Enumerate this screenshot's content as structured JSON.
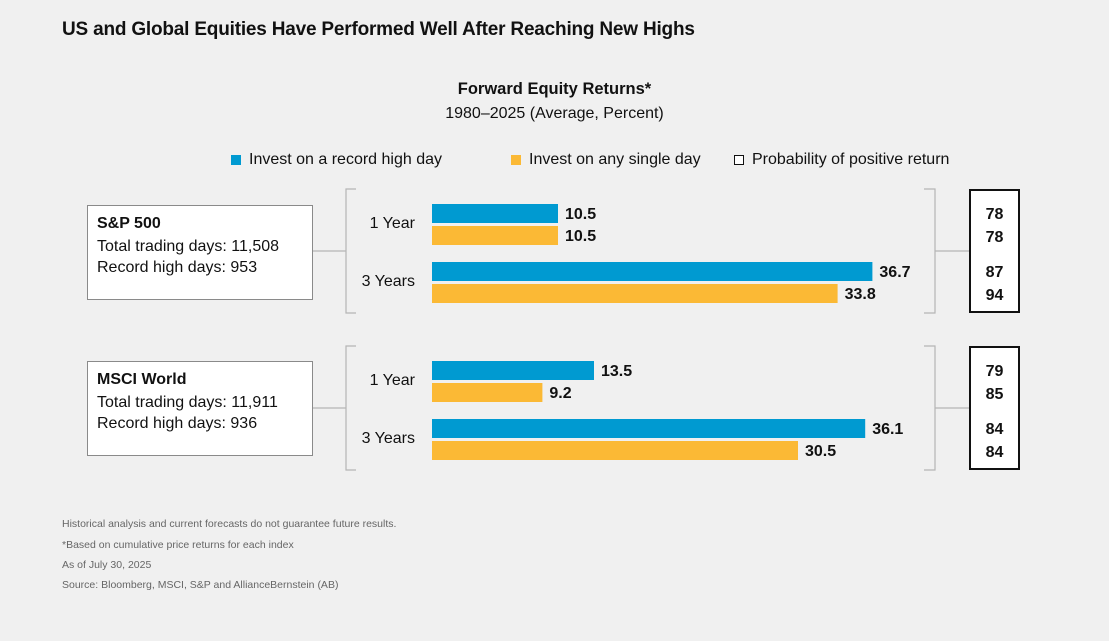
{
  "headline": "US and Global Equities Have Performed Well After Reaching New Highs",
  "chart_data": {
    "type": "bar",
    "orientation": "horizontal",
    "title": "Forward Equity Returns*",
    "subtitle": "1980–2025 (Average, Percent)",
    "legend": [
      {
        "label": "Invest on a record high day",
        "color": "#009ad1",
        "kind": "bar"
      },
      {
        "label": "Invest on any single day",
        "color": "#fbb935",
        "kind": "bar"
      },
      {
        "label": "Probability of positive return",
        "color": "#111111",
        "kind": "outline"
      }
    ],
    "legend_position": "top",
    "xlim": [
      0,
      40
    ],
    "grid": false,
    "groups": [
      {
        "index": "S&P 500",
        "total_trading_days_label": "Total trading days: 11,508",
        "record_high_days_label": "Record high days: 953",
        "periods": [
          {
            "label": "1 Year",
            "record_high": 10.5,
            "any_day": 10.5,
            "prob_record_high": 78,
            "prob_any_day": 78
          },
          {
            "label": "3 Years",
            "record_high": 36.7,
            "any_day": 33.8,
            "prob_record_high": 87,
            "prob_any_day": 94
          }
        ]
      },
      {
        "index": "MSCI World",
        "total_trading_days_label": "Total trading days: 11,911",
        "record_high_days_label": "Record high days: 936",
        "periods": [
          {
            "label": "1 Year",
            "record_high": 13.5,
            "any_day": 9.2,
            "prob_record_high": 79,
            "prob_any_day": 85
          },
          {
            "label": "3 Years",
            "record_high": 36.1,
            "any_day": 30.5,
            "prob_record_high": 84,
            "prob_any_day": 84
          }
        ]
      }
    ]
  },
  "footnotes": [
    "Historical analysis and current forecasts do not guarantee future results.",
    "*Based on cumulative price returns for each index",
    "As of July 30, 2025",
    "Source: Bloomberg, MSCI, S&P and AllianceBernstein (AB)"
  ]
}
